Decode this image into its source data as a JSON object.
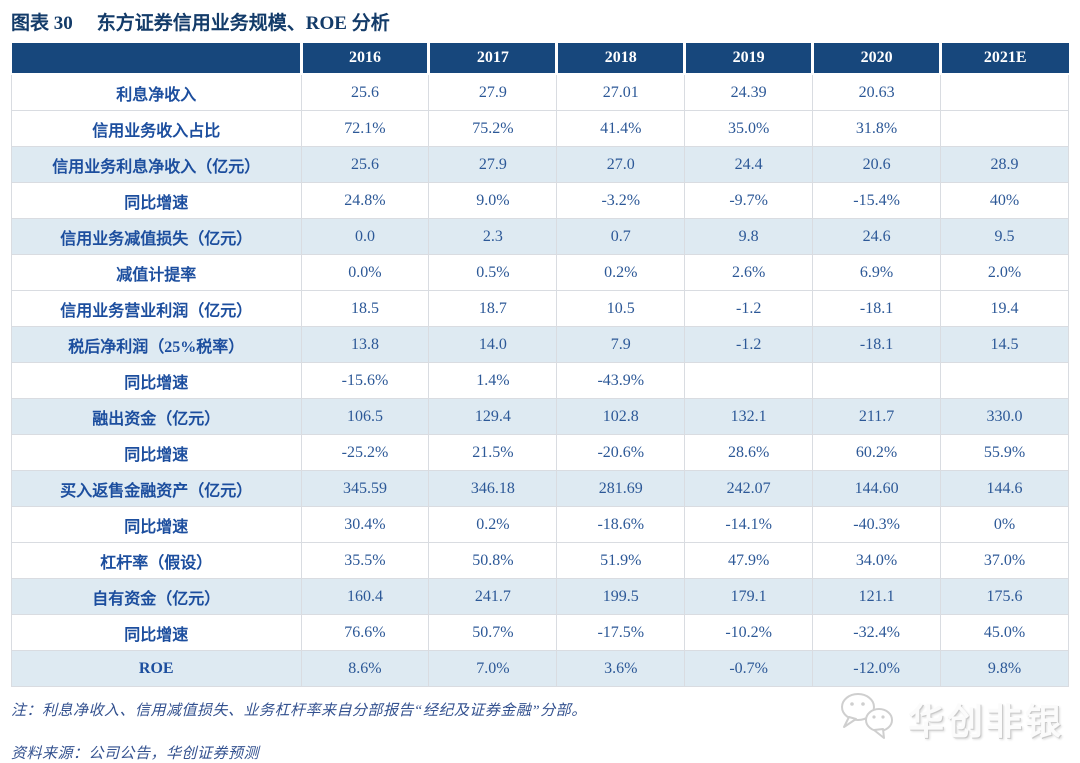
{
  "figure": {
    "caption_prefix": "图表 30"
  },
  "chart_data": {
    "type": "table",
    "title": "东方证券信用业务规模、ROE 分析",
    "columns": [
      "2016",
      "2017",
      "2018",
      "2019",
      "2020",
      "2021E"
    ],
    "rows": [
      {
        "label": "利息净收入",
        "shaded": false,
        "values": [
          "25.6",
          "27.9",
          "27.01",
          "24.39",
          "20.63",
          ""
        ]
      },
      {
        "label": "信用业务收入占比",
        "shaded": false,
        "values": [
          "72.1%",
          "75.2%",
          "41.4%",
          "35.0%",
          "31.8%",
          ""
        ]
      },
      {
        "label": "信用业务利息净收入（亿元）",
        "shaded": true,
        "values": [
          "25.6",
          "27.9",
          "27.0",
          "24.4",
          "20.6",
          "28.9"
        ]
      },
      {
        "label": "同比增速",
        "shaded": false,
        "values": [
          "24.8%",
          "9.0%",
          "-3.2%",
          "-9.7%",
          "-15.4%",
          "40%"
        ]
      },
      {
        "label": "信用业务减值损失（亿元）",
        "shaded": true,
        "values": [
          "0.0",
          "2.3",
          "0.7",
          "9.8",
          "24.6",
          "9.5"
        ]
      },
      {
        "label": "减值计提率",
        "shaded": false,
        "values": [
          "0.0%",
          "0.5%",
          "0.2%",
          "2.6%",
          "6.9%",
          "2.0%"
        ]
      },
      {
        "label": "信用业务营业利润（亿元）",
        "shaded": false,
        "values": [
          "18.5",
          "18.7",
          "10.5",
          "-1.2",
          "-18.1",
          "19.4"
        ]
      },
      {
        "label": "税后净利润（25%税率）",
        "shaded": true,
        "values": [
          "13.8",
          "14.0",
          "7.9",
          "-1.2",
          "-18.1",
          "14.5"
        ]
      },
      {
        "label": "同比增速",
        "shaded": false,
        "values": [
          "-15.6%",
          "1.4%",
          "-43.9%",
          "",
          "",
          ""
        ]
      },
      {
        "label": "融出资金（亿元）",
        "shaded": true,
        "values": [
          "106.5",
          "129.4",
          "102.8",
          "132.1",
          "211.7",
          "330.0"
        ]
      },
      {
        "label": "同比增速",
        "shaded": false,
        "values": [
          "-25.2%",
          "21.5%",
          "-20.6%",
          "28.6%",
          "60.2%",
          "55.9%"
        ]
      },
      {
        "label": "买入返售金融资产（亿元）",
        "shaded": true,
        "values": [
          "345.59",
          "346.18",
          "281.69",
          "242.07",
          "144.60",
          "144.6"
        ]
      },
      {
        "label": "同比增速",
        "shaded": false,
        "values": [
          "30.4%",
          "0.2%",
          "-18.6%",
          "-14.1%",
          "-40.3%",
          "0%"
        ]
      },
      {
        "label": "杠杆率（假设）",
        "shaded": false,
        "values": [
          "35.5%",
          "50.8%",
          "51.9%",
          "47.9%",
          "34.0%",
          "37.0%"
        ]
      },
      {
        "label": "自有资金（亿元）",
        "shaded": true,
        "values": [
          "160.4",
          "241.7",
          "199.5",
          "179.1",
          "121.1",
          "175.6"
        ]
      },
      {
        "label": "同比增速",
        "shaded": false,
        "values": [
          "76.6%",
          "50.7%",
          "-17.5%",
          "-10.2%",
          "-32.4%",
          "45.0%"
        ]
      },
      {
        "label": "ROE",
        "shaded": true,
        "values": [
          "8.6%",
          "7.0%",
          "3.6%",
          "-0.7%",
          "-12.0%",
          "9.8%"
        ]
      }
    ],
    "legend_position": "none",
    "grid": true
  },
  "notes": {
    "note": "注：利息净收入、信用减值损失、业务杠杆率来自分部报告“经纪及证券金融”分部。",
    "source": "资料来源：公司公告，华创证券预测"
  },
  "watermark": {
    "icon": "wechat-bubbles-icon",
    "text": "华创非银"
  },
  "colors": {
    "header_bg": "#17477C",
    "shaded_row_bg": "#DEEAF2",
    "label_text": "#1C4E9E",
    "value_text": "#2C5897",
    "title_text": "#133B69",
    "note_text": "#33518F",
    "grid_line": "#D9DCE1"
  }
}
